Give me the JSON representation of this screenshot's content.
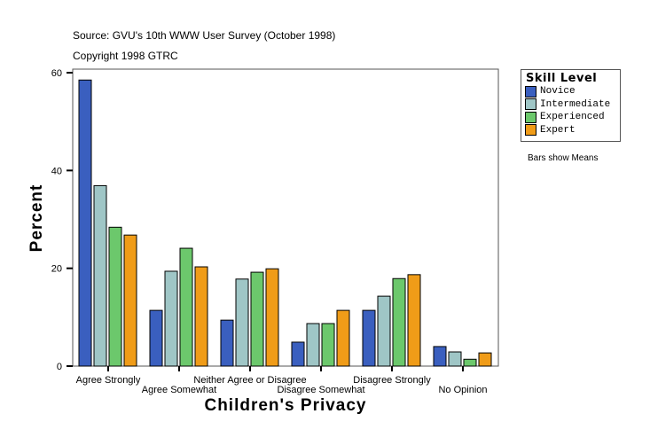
{
  "header": {
    "source": "Source: GVU's 10th WWW User Survey (October 1998)",
    "copyright": "Copyright 1998 GTRC"
  },
  "note": "Bars show Means",
  "chart_data": {
    "type": "bar",
    "xlabel": "Children's Privacy",
    "ylabel": "Percent",
    "ylim": [
      0,
      60
    ],
    "yticks": [
      0,
      20,
      40,
      60
    ],
    "categories": [
      "Agree Strongly",
      "Agree Somewhat",
      "Neither Agree or Disagree",
      "Disagree Somewhat",
      "Disagree Strongly",
      "No Opinion"
    ],
    "legend": {
      "title": "Skill Level",
      "position": "right"
    },
    "series": [
      {
        "name": "Novice",
        "color": "#3a5fbf",
        "values": [
          58.5,
          11.4,
          9.4,
          4.9,
          11.4,
          4.0
        ]
      },
      {
        "name": "Intermediate",
        "color": "#9fc6c6",
        "values": [
          36.9,
          19.4,
          17.8,
          8.7,
          14.3,
          2.9
        ]
      },
      {
        "name": "Experienced",
        "color": "#6cc86c",
        "values": [
          28.4,
          24.1,
          19.2,
          8.7,
          17.9,
          1.4
        ]
      },
      {
        "name": "Expert",
        "color": "#f09c18",
        "values": [
          26.8,
          20.3,
          19.9,
          11.4,
          18.7,
          2.7
        ]
      }
    ]
  }
}
